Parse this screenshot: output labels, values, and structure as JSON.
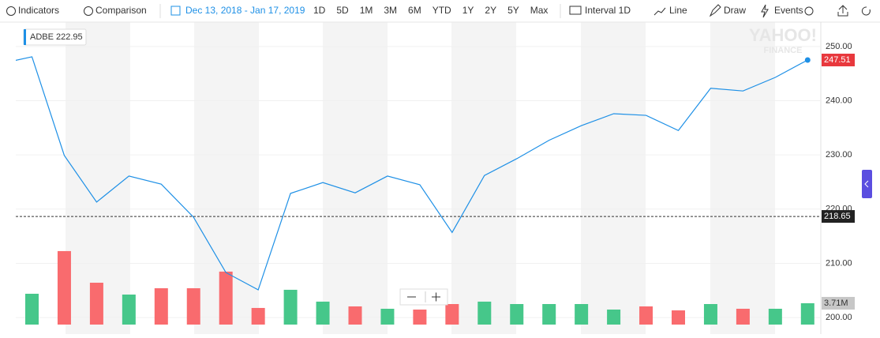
{
  "toolbar": {
    "indicators": "Indicators",
    "comparison": "Comparison",
    "date_range": "Dec 13, 2018 - Jan 17, 2019",
    "ranges": [
      "1D",
      "5D",
      "1M",
      "3M",
      "6M",
      "YTD",
      "1Y",
      "2Y",
      "5Y",
      "Max"
    ],
    "interval": "Interval 1D",
    "chart_style": "Line",
    "draw": "Draw",
    "events": "Events"
  },
  "watermark": [
    "YAHOO!",
    "FINANCE"
  ],
  "chart_data": {
    "type": "line",
    "legend_value": 222.95,
    "categories": [
      null,
      null,
      null,
      null,
      null,
      null,
      null,
      null,
      null,
      null,
      null,
      null,
      null,
      null,
      null,
      null,
      null,
      null,
      null,
      null,
      null,
      null,
      null,
      null,
      null,
      null
    ],
    "series": [
      {
        "name": "ADBE",
        "color": "#1e90e6",
        "values": [
          246.8,
          248.1,
          229.9,
          221.3,
          226.1,
          224.6,
          218.5,
          208.3,
          205.1,
          222.9,
          224.9,
          223.0,
          226.1,
          224.5,
          215.7,
          226.2,
          229.3,
          232.7,
          235.4,
          237.6,
          237.3,
          234.5,
          242.3,
          241.8,
          244.3,
          247.51
        ]
      }
    ],
    "volume": {
      "axis": "y2",
      "values": [
        null,
        5360000,
        12780000,
        7280000,
        5220000,
        6320000,
        6320000,
        9210000,
        2890000,
        6050000,
        3990000,
        3160000,
        2750000,
        2610000,
        3570000,
        3990000,
        3570000,
        3570000,
        3570000,
        2610000,
        3160000,
        2470000,
        3570000,
        2750000,
        2750000,
        3710000
      ],
      "colors": [
        null,
        "#46c78a",
        "#f96b6e",
        "#f96b6e",
        "#46c78a",
        "#f96b6e",
        "#f96b6e",
        "#f96b6e",
        "#f96b6e",
        "#46c78a",
        "#46c78a",
        "#f96b6e",
        "#46c78a",
        "#f96b6e",
        "#f96b6e",
        "#46c78a",
        "#46c78a",
        "#46c78a",
        "#46c78a",
        "#46c78a",
        "#f96b6e",
        "#f96b6e",
        "#46c78a",
        "#f96b6e",
        "#46c78a",
        "#46c78a"
      ],
      "last_label": {
        "value": 3710000,
        "label": "3.71M"
      }
    },
    "last_price": 247.51,
    "previous_close": 218.65,
    "ylim": [
      198.7,
      254.5
    ],
    "y2lim": [
      0,
      52600000
    ],
    "yticks": [
      {
        "value": 200,
        "label": "200.00"
      },
      {
        "value": 210,
        "label": "210.00"
      },
      {
        "value": 220,
        "label": "220.00"
      },
      {
        "value": 230,
        "label": "230.00"
      },
      {
        "value": 240,
        "label": "240.00"
      },
      {
        "value": 250,
        "label": "250.00"
      }
    ],
    "grid": true
  }
}
